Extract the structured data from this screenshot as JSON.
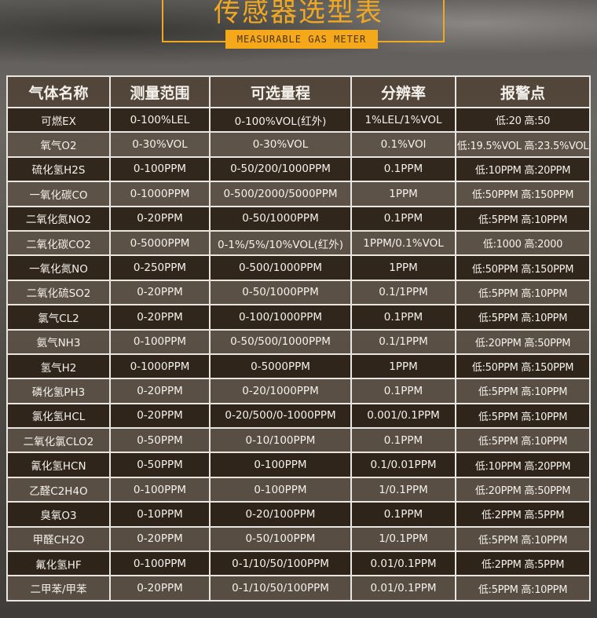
{
  "header": {
    "title": "传感器选型表",
    "subtitle": "MEASURABLE GAS METER"
  },
  "colors": {
    "accent": "#f0a823",
    "row_dark": "#2d2218",
    "row_light": "#5c5044",
    "grid": "#e9e6e1"
  },
  "table": {
    "columns": [
      "气体名称",
      "测量范围",
      "可选量程",
      "分辨率",
      "报警点"
    ],
    "rows": [
      [
        "可燃EX",
        "0-100%LEL",
        "0-100%VOL(红外)",
        "1%LEL/1%VOL",
        "低:20 高:50"
      ],
      [
        "氧气O2",
        "0-30%VOL",
        "0-30%VOL",
        "0.1%VOl",
        "低:19.5%VOL 高:23.5%VOL"
      ],
      [
        "硫化氢H2S",
        "0-100PPM",
        "0-50/200/1000PPM",
        "0.1PPM",
        "低:10PPM 高:20PPM"
      ],
      [
        "一氧化碳CO",
        "0-1000PPM",
        "0-500/2000/5000PPM",
        "1PPM",
        "低:50PPM 高:150PPM"
      ],
      [
        "二氧化氮NO2",
        "0-20PPM",
        "0-50/1000PPM",
        "0.1PPM",
        "低:5PPM 高:10PPM"
      ],
      [
        "二氧化碳CO2",
        "0-5000PPM",
        "0-1%/5%/10%VOL(红外)",
        "1PPM/0.1%VOL",
        "低:1000 高:2000"
      ],
      [
        "一氧化氮NO",
        "0-250PPM",
        "0-500/1000PPM",
        "1PPM",
        "低:50PPM 高:150PPM"
      ],
      [
        "二氧化硫SO2",
        "0-20PPM",
        "0-50/1000PPM",
        "0.1/1PPM",
        "低:5PPM 高:10PPM"
      ],
      [
        "氯气CL2",
        "0-20PPM",
        "0-100/1000PPM",
        "0.1PPM",
        "低:5PPM 高:10PPM"
      ],
      [
        "氨气NH3",
        "0-100PPM",
        "0-50/500/1000PPM",
        "0.1/1PPM",
        "低:20PPM 高:50PPM"
      ],
      [
        "氢气H2",
        "0-1000PPM",
        "0-5000PPM",
        "1PPM",
        "低:50PPM 高:150PPM"
      ],
      [
        "磷化氢PH3",
        "0-20PPM",
        "0-20/1000PPM",
        "0.1PPM",
        "低:5PPM 高:10PPM"
      ],
      [
        "氯化氢HCL",
        "0-20PPM",
        "0-20/500/0-1000PPM",
        "0.001/0.1PPM",
        "低:5PPM 高:10PPM"
      ],
      [
        "二氧化氯CLO2",
        "0-50PPM",
        "0-10/100PPM",
        "0.1PPM",
        "低:5PPM 高:10PPM"
      ],
      [
        "氰化氢HCN",
        "0-50PPM",
        "0-100PPM",
        "0.1/0.01PPM",
        "低:10PPM 高:20PPM"
      ],
      [
        "乙醛C2H4O",
        "0-100PPM",
        "0-100PPM",
        "1/0.1PPM",
        "低:20PPM 高:50PPM"
      ],
      [
        "臭氧O3",
        "0-10PPM",
        "0-20/100PPM",
        "0.1PPM",
        "低:2PPM 高:5PPM"
      ],
      [
        "甲醛CH2O",
        "0-20PPM",
        "0-50/100PPM",
        "1/0.1PPM",
        "低:5PPM 高:10PPM"
      ],
      [
        "氟化氢HF",
        "0-100PPM",
        "0-1/10/50/100PPM",
        "0.01/0.1PPM",
        "低:2PPM 高:5PPM"
      ],
      [
        "二甲苯/甲苯",
        "0-20PPM",
        "0-1/10/50/100PPM",
        "0.01/0.1PPM",
        "低:5PPM 高:10PPM"
      ]
    ]
  }
}
